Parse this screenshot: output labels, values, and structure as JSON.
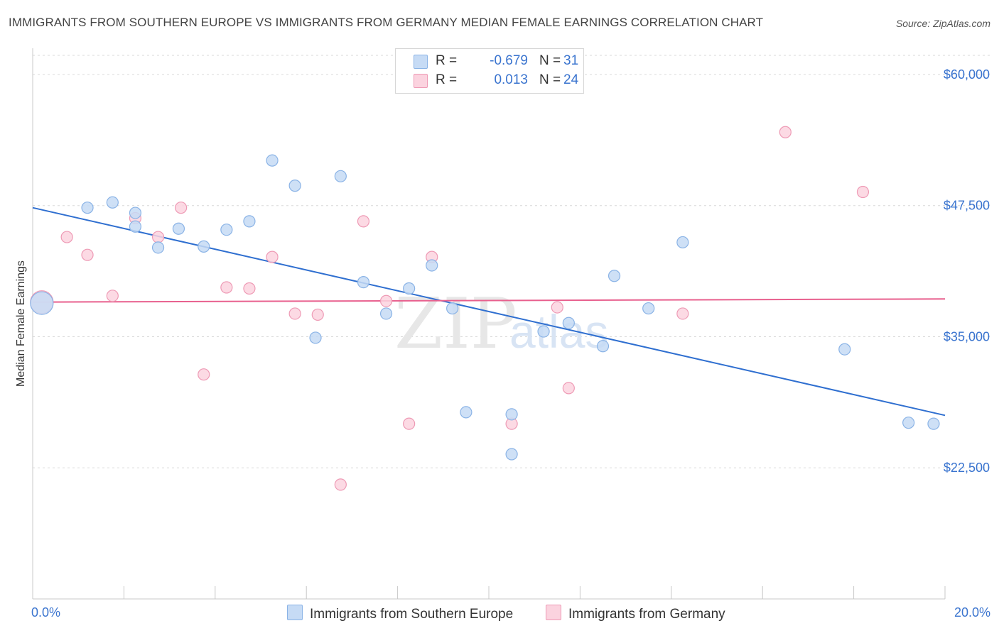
{
  "title": "IMMIGRANTS FROM SOUTHERN EUROPE VS IMMIGRANTS FROM GERMANY MEDIAN FEMALE EARNINGS CORRELATION CHART",
  "source": "Source: ZipAtlas.com",
  "watermark": {
    "zip": "ZIP",
    "atlas": "atlas"
  },
  "legend_top": {
    "rows": [
      {
        "r_label": "R =",
        "r_value": "-0.679",
        "n_label": "N =",
        "n_value": "31",
        "color": "#a9c8f0"
      },
      {
        "r_label": "R =",
        "r_value": "0.013",
        "n_label": "N =",
        "n_value": "24",
        "color": "#f6b9cd"
      }
    ]
  },
  "colors": {
    "series1_fill": "#c6dbf5",
    "series1_stroke": "#8ab3e6",
    "series1_line": "#2f6fd0",
    "series2_fill": "#fbd3df",
    "series2_stroke": "#ee9ab5",
    "series2_line": "#e8608e",
    "tick_text": "#3a74cf",
    "grid": "#d8d8d8"
  },
  "chart_data": {
    "type": "scatter",
    "title": "IMMIGRANTS FROM SOUTHERN EUROPE VS IMMIGRANTS FROM GERMANY MEDIAN FEMALE EARNINGS CORRELATION CHART",
    "xlabel": "",
    "ylabel": "Median Female Earnings",
    "xlim": [
      0,
      20
    ],
    "ylim": [
      10000,
      62500
    ],
    "x_tick_labels": [
      "0.0%",
      "20.0%"
    ],
    "y_ticks": [
      22500,
      35000,
      47500,
      60000
    ],
    "y_tick_labels": [
      "$22,500",
      "$35,000",
      "$47,500",
      "$60,000"
    ],
    "grid": true,
    "legend_position": "bottom",
    "series": [
      {
        "name": "Immigrants from Southern Europe",
        "points": [
          [
            0.2,
            38200
          ],
          [
            1.2,
            47300
          ],
          [
            1.75,
            47800
          ],
          [
            2.25,
            46800
          ],
          [
            2.25,
            45500
          ],
          [
            2.75,
            43500
          ],
          [
            3.2,
            45300
          ],
          [
            3.75,
            43600
          ],
          [
            4.25,
            45200
          ],
          [
            4.75,
            46000
          ],
          [
            5.25,
            51800
          ],
          [
            5.75,
            49400
          ],
          [
            6.2,
            34900
          ],
          [
            6.75,
            50300
          ],
          [
            7.25,
            40200
          ],
          [
            7.75,
            37200
          ],
          [
            8.25,
            39600
          ],
          [
            8.75,
            41800
          ],
          [
            9.2,
            37700
          ],
          [
            9.5,
            27800
          ],
          [
            10.5,
            27600
          ],
          [
            10.5,
            23800
          ],
          [
            11.2,
            35500
          ],
          [
            11.75,
            36300
          ],
          [
            12.5,
            34100
          ],
          [
            12.75,
            40800
          ],
          [
            13.5,
            37700
          ],
          [
            14.25,
            44000
          ],
          [
            17.8,
            33800
          ],
          [
            19.2,
            26800
          ],
          [
            19.75,
            26700
          ]
        ],
        "trend": {
          "x": [
            0,
            20
          ],
          "y": [
            47300,
            27500
          ]
        }
      },
      {
        "name": "Immigrants from Germany",
        "points": [
          [
            0.2,
            38300
          ],
          [
            0.75,
            44500
          ],
          [
            1.2,
            42800
          ],
          [
            1.75,
            38900
          ],
          [
            2.25,
            46300
          ],
          [
            2.75,
            44500
          ],
          [
            3.25,
            47300
          ],
          [
            3.75,
            31400
          ],
          [
            4.25,
            39700
          ],
          [
            4.75,
            39600
          ],
          [
            5.25,
            42600
          ],
          [
            5.75,
            37200
          ],
          [
            6.25,
            37100
          ],
          [
            6.75,
            20900
          ],
          [
            7.25,
            46000
          ],
          [
            7.75,
            38400
          ],
          [
            8.25,
            26700
          ],
          [
            8.75,
            42600
          ],
          [
            10.5,
            26700
          ],
          [
            11.5,
            37800
          ],
          [
            11.75,
            30100
          ],
          [
            14.25,
            37200
          ],
          [
            16.5,
            54500
          ],
          [
            18.2,
            48800
          ]
        ],
        "trend": {
          "x": [
            0,
            20
          ],
          "y": [
            38300,
            38600
          ]
        }
      }
    ]
  }
}
